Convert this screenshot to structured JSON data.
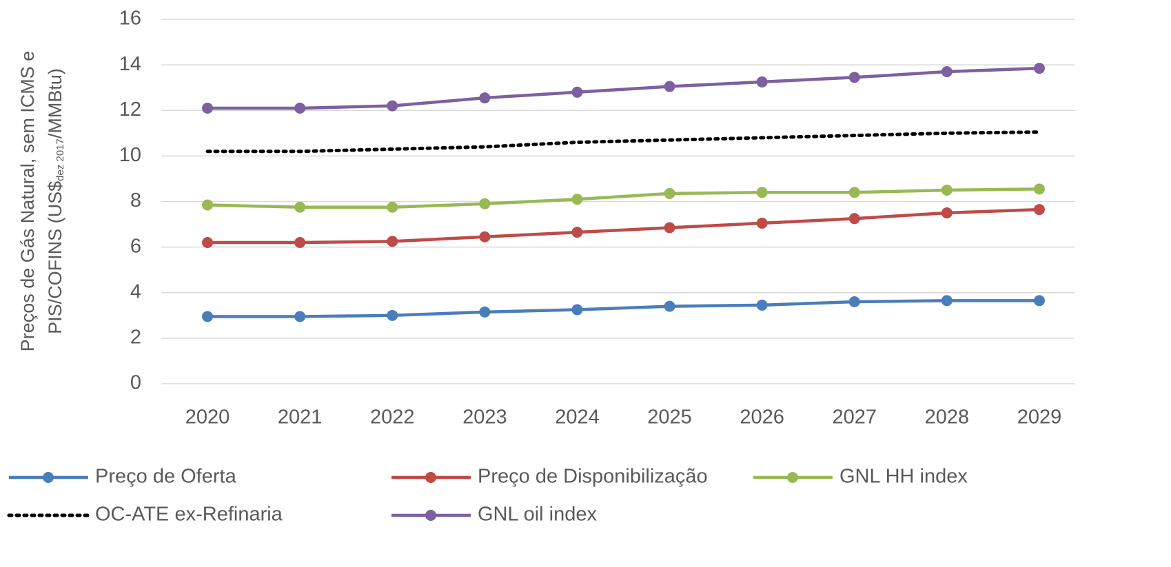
{
  "chart_data": {
    "type": "line",
    "ylabel": [
      "Preços de Gás Natural, sem ICMS e",
      "PIS/COFINS (US$",
      "dez 2017",
      "/MMBtu)"
    ],
    "categories": [
      "2020",
      "2021",
      "2022",
      "2023",
      "2024",
      "2025",
      "2026",
      "2027",
      "2028",
      "2029"
    ],
    "series": [
      {
        "name": "Preço de Oferta",
        "color": "#4a7ebb",
        "values": [
          2.95,
          2.95,
          3.0,
          3.15,
          3.25,
          3.4,
          3.45,
          3.6,
          3.65,
          3.65
        ]
      },
      {
        "name": "Preço de Disponibilização",
        "color": "#be4b48",
        "values": [
          6.2,
          6.2,
          6.25,
          6.45,
          6.65,
          6.85,
          7.05,
          7.25,
          7.5,
          7.65
        ]
      },
      {
        "name": "GNL HH index",
        "color": "#98b954",
        "values": [
          7.85,
          7.75,
          7.75,
          7.9,
          8.1,
          8.35,
          8.4,
          8.4,
          8.5,
          8.55
        ]
      },
      {
        "name": "OC-ATE ex-Refinaria",
        "color": "#000000",
        "line_style": "dotted",
        "values": [
          10.2,
          10.2,
          10.3,
          10.4,
          10.6,
          10.7,
          10.8,
          10.9,
          11.0,
          11.05
        ]
      },
      {
        "name": "GNL oil index",
        "color": "#7d60a0",
        "values": [
          12.1,
          12.1,
          12.2,
          12.55,
          12.8,
          13.05,
          13.25,
          13.45,
          13.7,
          13.85
        ]
      }
    ],
    "ylim": [
      0,
      16
    ],
    "yticks": [
      0,
      2,
      4,
      6,
      8,
      10,
      12,
      14,
      16
    ],
    "grid": true,
    "legend": "bottom"
  }
}
